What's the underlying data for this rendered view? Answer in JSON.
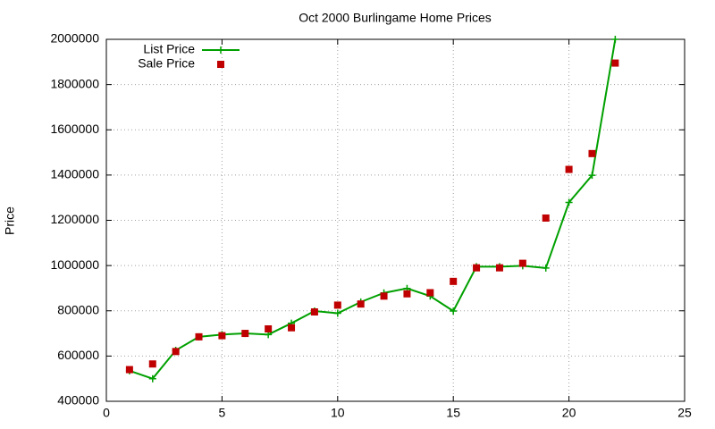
{
  "chart_data": {
    "type": "line",
    "title": "Oct 2000 Burlingame Home Prices",
    "y_label": "Price",
    "x": [
      1,
      2,
      3,
      4,
      5,
      6,
      7,
      8,
      9,
      10,
      11,
      12,
      13,
      14,
      15,
      16,
      17,
      18,
      19,
      20,
      21,
      22
    ],
    "series": [
      {
        "name": "List Price",
        "color": "#00a000",
        "marker": "plus",
        "line": true,
        "values": [
          535000,
          500000,
          625000,
          685000,
          695000,
          700000,
          695000,
          745000,
          799000,
          789000,
          839000,
          879000,
          899000,
          865000,
          799000,
          995000,
          995000,
          999000,
          989000,
          1279000,
          1399000,
          2000000
        ]
      },
      {
        "name": "Sale Price",
        "color": "#c00000",
        "marker": "square",
        "line": false,
        "values": [
          540000,
          565000,
          620000,
          685000,
          690000,
          700000,
          720000,
          725000,
          795000,
          825000,
          830000,
          865000,
          875000,
          880000,
          930000,
          990000,
          990000,
          1010000,
          1210000,
          1425000,
          1495000,
          1895000
        ]
      }
    ],
    "xlim": [
      0,
      25
    ],
    "xticks": [
      0,
      5,
      10,
      15,
      20,
      25
    ],
    "ylim": [
      400000,
      2000000
    ],
    "yticks": [
      400000,
      600000,
      800000,
      1000000,
      1200000,
      1400000,
      1600000,
      1800000,
      2000000
    ],
    "grid": true,
    "legend": "top-left"
  }
}
